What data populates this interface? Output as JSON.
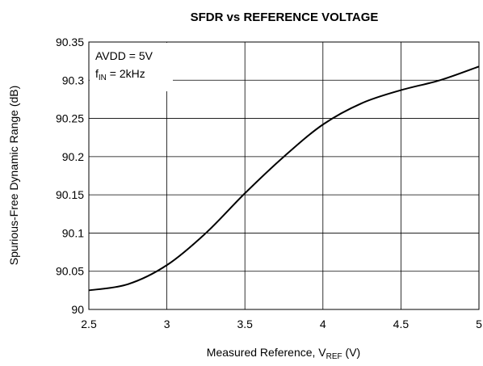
{
  "chart_data": {
    "type": "line",
    "title": "SFDR vs REFERENCE VOLTAGE",
    "xlabel": {
      "text": "Measured Reference, V",
      "sub": "REF",
      "suffix": " (V)"
    },
    "ylabel": "Spurious-Free Dynamic Range (dB)",
    "annotations": [
      {
        "text": "AVDD = 5V"
      },
      {
        "text": "f",
        "sub": "IN",
        "suffix": " = 2kHz"
      }
    ],
    "x": [
      2.5,
      2.75,
      3,
      3.25,
      3.5,
      3.75,
      4,
      4.25,
      4.5,
      4.75,
      5
    ],
    "series": [
      {
        "color": "#000000",
        "values": [
          90.025,
          90.033,
          90.058,
          90.1,
          90.152,
          90.2,
          90.242,
          90.27,
          90.287,
          90.3,
          90.318
        ]
      }
    ],
    "xlim": [
      2.5,
      5
    ],
    "xticks": [
      2.5,
      3,
      3.5,
      4,
      4.5,
      5
    ],
    "ylim": [
      90,
      90.35
    ],
    "yticks": [
      90,
      90.05,
      90.1,
      90.15,
      90.2,
      90.25,
      90.3,
      90.35
    ],
    "grid": true
  }
}
